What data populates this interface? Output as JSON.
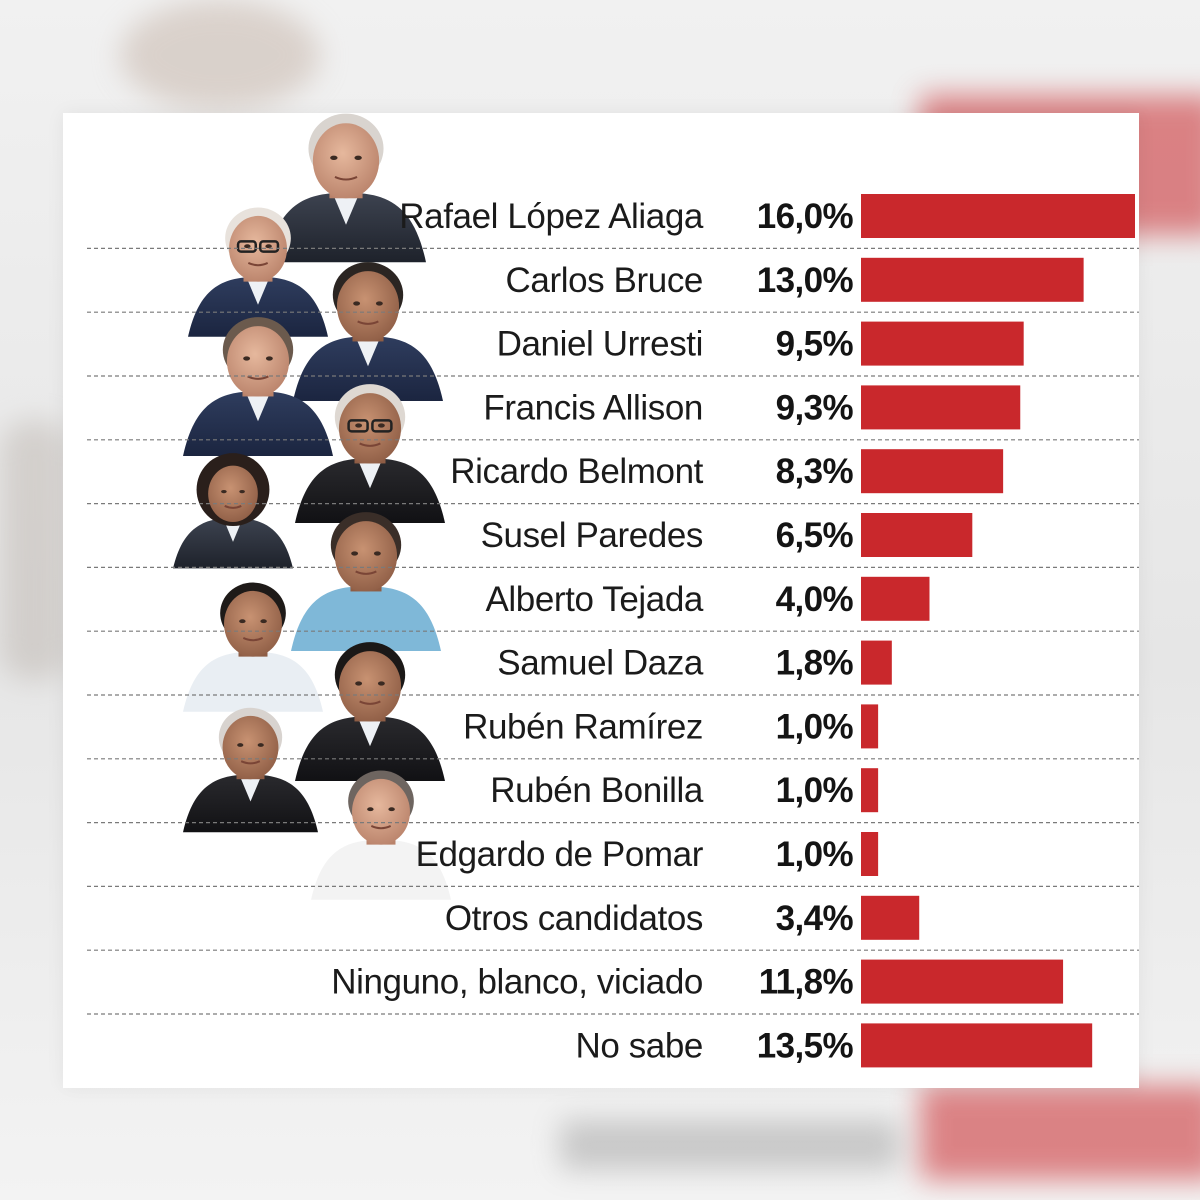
{
  "colors": {
    "bar": "#c9282c",
    "divider": "#7a7a7a",
    "card": "#ffffff"
  },
  "chart_data": {
    "type": "bar",
    "orientation": "horizontal",
    "unit": "%",
    "xlim": [
      0,
      16
    ],
    "grid": false,
    "categories": [
      "Rafael López Aliaga",
      "Carlos Bruce",
      "Daniel Urresti",
      "Francis Allison",
      "Ricardo Belmont",
      "Susel Paredes",
      "Alberto Tejada",
      "Samuel Daza",
      "Rubén Ramírez",
      "Rubén Bonilla",
      "Edgardo de Pomar",
      "Otros candidatos",
      "Ninguno, blanco, viciado",
      "No sabe"
    ],
    "values": [
      16.0,
      13.0,
      9.5,
      9.3,
      8.3,
      6.5,
      4.0,
      1.8,
      1.0,
      1.0,
      1.0,
      3.4,
      11.8,
      13.5
    ],
    "value_labels": [
      "16,0%",
      "13,0%",
      "9,5%",
      "9,3%",
      "8,3%",
      "6,5%",
      "4,0%",
      "1,8%",
      "1,0%",
      "1,0%",
      "1,0%",
      "3,4%",
      "11,8%",
      "13,5%"
    ]
  }
}
